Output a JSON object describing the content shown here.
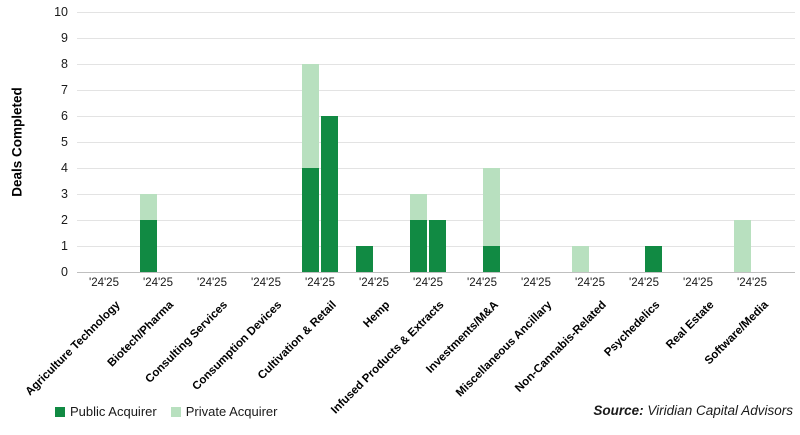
{
  "chart_data": {
    "type": "bar",
    "stacked": true,
    "title": "",
    "ylabel": "Deals Completed",
    "ylim": [
      0,
      10
    ],
    "ytick_step": 1,
    "grid": true,
    "x_tick_label": "'24'25",
    "group_labels": [
      "'24",
      "'25"
    ],
    "legend_position": "bottom-left",
    "legend": [
      {
        "name": "Public Acquirer",
        "color": "#118a43"
      },
      {
        "name": "Private Acquirer",
        "color": "#b8e0bf"
      }
    ],
    "categories": [
      {
        "label": "Agriculture Technology",
        "y24": {
          "public": 0,
          "private": 0
        },
        "y25": {
          "public": 0,
          "private": 0
        }
      },
      {
        "label": "Biotech/Pharma",
        "y24": {
          "public": 2,
          "private": 1
        },
        "y25": {
          "public": 0,
          "private": 0
        }
      },
      {
        "label": "Consulting Services",
        "y24": {
          "public": 0,
          "private": 0
        },
        "y25": {
          "public": 0,
          "private": 0
        }
      },
      {
        "label": "Consumption Devices",
        "y24": {
          "public": 0,
          "private": 0
        },
        "y25": {
          "public": 0,
          "private": 0
        }
      },
      {
        "label": "Cultivation & Retail",
        "y24": {
          "public": 4,
          "private": 4
        },
        "y25": {
          "public": 6,
          "private": 0
        }
      },
      {
        "label": "Hemp",
        "y24": {
          "public": 1,
          "private": 0
        },
        "y25": {
          "public": 0,
          "private": 0
        }
      },
      {
        "label": "Infused Products & Extracts",
        "y24": {
          "public": 2,
          "private": 1
        },
        "y25": {
          "public": 2,
          "private": 0
        }
      },
      {
        "label": "Investments/M&A",
        "y24": {
          "public": 0,
          "private": 0
        },
        "y25": {
          "public": 1,
          "private": 3
        }
      },
      {
        "label": "Miscellaneous Ancillary",
        "y24": {
          "public": 0,
          "private": 0
        },
        "y25": {
          "public": 0,
          "private": 0
        }
      },
      {
        "label": "Non-Cannabis-Related",
        "y24": {
          "public": 0,
          "private": 1
        },
        "y25": {
          "public": 0,
          "private": 0
        }
      },
      {
        "label": "Psychedelics",
        "y24": {
          "public": 0,
          "private": 0
        },
        "y25": {
          "public": 1,
          "private": 0
        }
      },
      {
        "label": "Real Estate",
        "y24": {
          "public": 0,
          "private": 0
        },
        "y25": {
          "public": 0,
          "private": 0
        }
      },
      {
        "label": "Software/Media",
        "y24": {
          "public": 0,
          "private": 2
        },
        "y25": {
          "public": 0,
          "private": 0
        }
      }
    ]
  },
  "source": {
    "prefix": "Source:",
    "text": "Viridian Capital Advisors"
  }
}
